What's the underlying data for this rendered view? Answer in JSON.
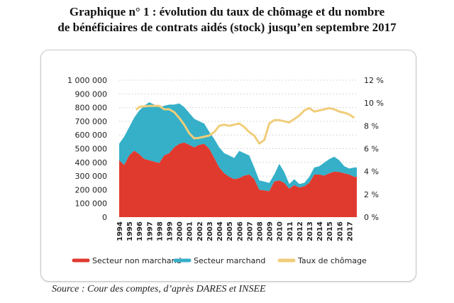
{
  "chart_data": {
    "type": "area",
    "title": "Graphique n° 1 : évolution du taux de chômage et du nombre",
    "subtitle": "de bénéficiaires de contrats aidés (stock) jusqu’en septembre 2017",
    "source": "Source : Cour des comptes, d’après DARES et INSEE",
    "x_ticks": [
      "1994",
      "1995",
      "1996",
      "1997",
      "1998",
      "1999",
      "2000",
      "2001",
      "2002",
      "2003",
      "2004",
      "2005",
      "2006",
      "2007",
      "2008",
      "2009",
      "2010",
      "2011",
      "2012",
      "2013",
      "2014",
      "2015",
      "2016",
      "2017"
    ],
    "y_left": {
      "range": [
        0,
        1000000
      ],
      "ticks": [
        "0",
        "100 000",
        "200 000",
        "300 000",
        "400 000",
        "500 000",
        "600 000",
        "700 000",
        "800 000",
        "900 000",
        "1 000 000"
      ]
    },
    "y_right": {
      "range": [
        0,
        12
      ],
      "ticks": [
        "0 %",
        "2 %",
        "4 %",
        "6 %",
        "8 %",
        "10 %",
        "12 %"
      ]
    },
    "grid": "horizontal dotted",
    "legend_position": "bottom",
    "colors": {
      "non_marchand": "#e03a2f",
      "marchand": "#35b0c8",
      "chomage": "#f0cd7a"
    },
    "x": [
      1994,
      1994.5,
      1995,
      1995.5,
      1996,
      1996.5,
      1997,
      1997.5,
      1998,
      1998.5,
      1999,
      1999.5,
      2000,
      2000.5,
      2001,
      2001.5,
      2002,
      2002.5,
      2003,
      2003.5,
      2004,
      2004.5,
      2005,
      2005.5,
      2006,
      2006.5,
      2007,
      2007.5,
      2008,
      2008.5,
      2009,
      2009.5,
      2010,
      2010.5,
      2011,
      2011.5,
      2012,
      2012.5,
      2013,
      2013.5,
      2014,
      2014.5,
      2015,
      2015.5,
      2016,
      2016.5,
      2017,
      2017.5
    ],
    "series": [
      {
        "name": "Secteur non marchand",
        "axis": "left",
        "values": [
          415000,
          380000,
          450000,
          485000,
          460000,
          425000,
          415000,
          405000,
          395000,
          450000,
          467000,
          510000,
          535000,
          545000,
          528000,
          510000,
          528000,
          535000,
          500000,
          432000,
          363000,
          320000,
          294000,
          277000,
          285000,
          303000,
          311000,
          277000,
          200000,
          195000,
          190000,
          260000,
          268000,
          250000,
          208000,
          234000,
          216000,
          225000,
          250000,
          311000,
          311000,
          303000,
          320000,
          332000,
          329000,
          320000,
          311000,
          294000
        ]
      },
      {
        "name": "Secteur marchand",
        "axis": "left",
        "values": [
          121000,
          208000,
          207000,
          242000,
          318000,
          388000,
          424000,
          417000,
          409000,
          363000,
          355000,
          312000,
          295000,
          259000,
          233000,
          208000,
          172000,
          148000,
          123000,
          139000,
          147000,
          147000,
          156000,
          155000,
          199000,
          164000,
          139000,
          86000,
          68000,
          65000,
          60000,
          51000,
          121000,
          79000,
          34000,
          43000,
          26000,
          25000,
          44000,
          52000,
          61000,
          95000,
          104000,
          109000,
          86000,
          52000,
          44000,
          69000
        ]
      },
      {
        "name": "Taux de chômage",
        "axis": "right",
        "x": [
          1995.7,
          1996,
          1997,
          1998,
          1998.5,
          1999,
          1999.5,
          2000,
          2000.5,
          2001,
          2001.5,
          2002,
          2002.5,
          2003,
          2003.5,
          2004,
          2004.5,
          2005,
          2005.5,
          2006,
          2006.5,
          2007,
          2007.5,
          2008,
          2008.5,
          2009,
          2009.5,
          2010,
          2010.5,
          2011,
          2011.5,
          2012,
          2012.5,
          2013,
          2013.5,
          2014,
          2014.5,
          2015,
          2015.5,
          2016,
          2016.5,
          2017,
          2017.5
        ],
        "values": [
          9.4,
          9.65,
          9.75,
          9.75,
          9.45,
          9.45,
          9.2,
          8.7,
          8.1,
          7.35,
          6.9,
          6.95,
          7.05,
          7.15,
          7.45,
          8.0,
          8.1,
          8.0,
          8.1,
          8.2,
          7.9,
          7.45,
          7.15,
          6.45,
          6.75,
          8.2,
          8.5,
          8.5,
          8.4,
          8.3,
          8.6,
          8.9,
          9.35,
          9.55,
          9.25,
          9.35,
          9.45,
          9.55,
          9.45,
          9.25,
          9.15,
          9.0,
          8.7
        ]
      }
    ]
  }
}
